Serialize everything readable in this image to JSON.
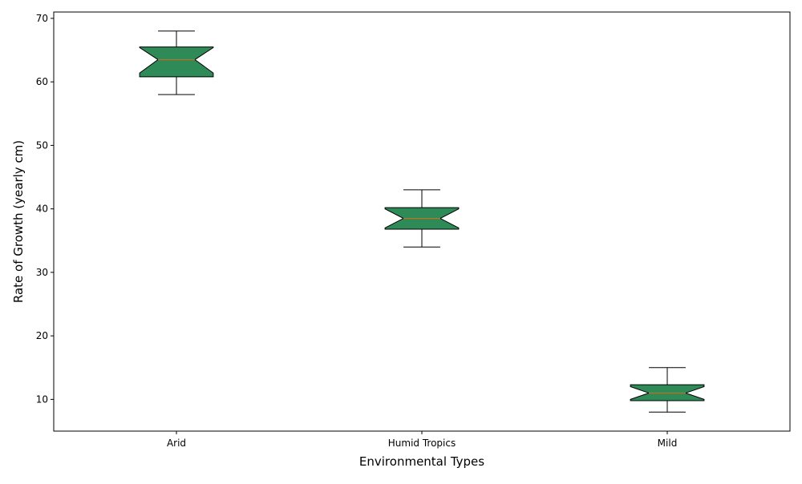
{
  "chart_data": {
    "type": "box",
    "variant": "notched",
    "xlabel": "Environmental Types",
    "ylabel": "Rate of Growth (yearly cm)",
    "ylim": [
      5,
      71
    ],
    "yticks": [
      10,
      20,
      30,
      40,
      50,
      60,
      70
    ],
    "grid": false,
    "categories": [
      "Arid",
      "Humid Tropics",
      "Mild"
    ],
    "boxes": [
      {
        "category": "Arid",
        "whisker_low": 58,
        "q1": 60.8,
        "median": 63.5,
        "q3": 65.5,
        "whisker_high": 68,
        "notch_low": 61.4,
        "notch_high": 65.4
      },
      {
        "category": "Humid Tropics",
        "whisker_low": 34,
        "q1": 36.8,
        "median": 38.5,
        "q3": 40.2,
        "whisker_high": 43,
        "notch_low": 37.0,
        "notch_high": 40.0
      },
      {
        "category": "Mild",
        "whisker_low": 8,
        "q1": 9.8,
        "median": 11.0,
        "q3": 12.3,
        "whisker_high": 15,
        "notch_low": 10.0,
        "notch_high": 12.0
      }
    ],
    "colors": {
      "box_fill": "#2e8b57",
      "median": "#d2691e",
      "edge": "#000000"
    }
  }
}
